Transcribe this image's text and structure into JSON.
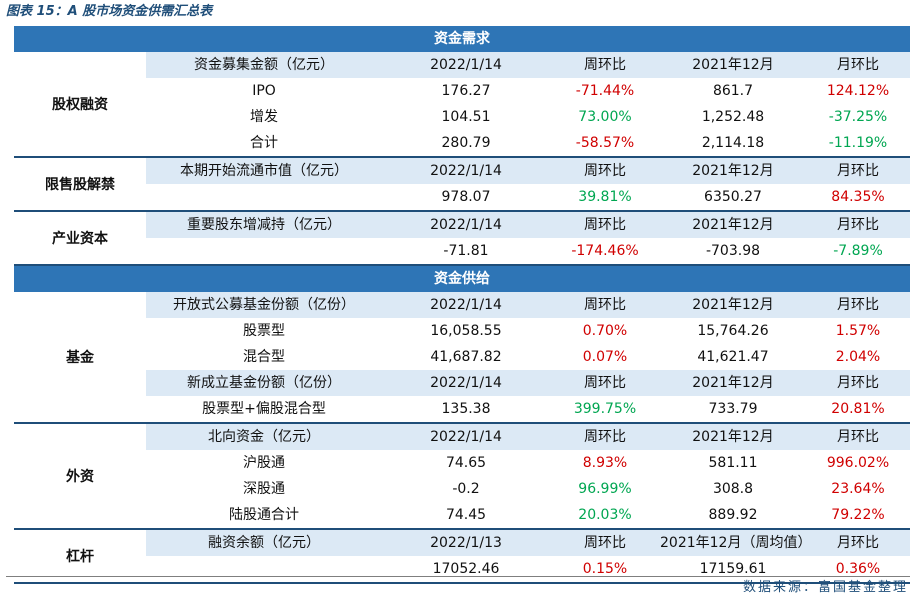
{
  "title": "图表 15：A 股市场资金供需汇总表",
  "source": "数据来源：富国基金整理",
  "bands": {
    "demand": "资金需求",
    "supply": "资金供给"
  },
  "sections": [
    {
      "id": "equity",
      "group": "demand",
      "label": "股权融资",
      "rows": [
        {
          "header": true,
          "cells": [
            "资金募集金额（亿元）",
            "2022/1/14",
            "周环比",
            "2021年12月",
            "月环比"
          ]
        },
        {
          "cells": [
            "IPO",
            "176.27",
            "-71.44%",
            "861.7",
            "124.12%"
          ],
          "colors": [
            "",
            "",
            "red",
            "",
            "red"
          ]
        },
        {
          "cells": [
            "增发",
            "104.51",
            "73.00%",
            "1,252.48",
            "-37.25%"
          ],
          "colors": [
            "",
            "",
            "green",
            "",
            "green"
          ]
        },
        {
          "cells": [
            "合计",
            "280.79",
            "-58.57%",
            "2,114.18",
            "-11.19%"
          ],
          "colors": [
            "",
            "",
            "red",
            "",
            "green"
          ]
        }
      ]
    },
    {
      "id": "unlock",
      "group": "demand",
      "label": "限售股解禁",
      "rows": [
        {
          "header": true,
          "cells": [
            "本期开始流通市值（亿元）",
            "2022/1/14",
            "周环比",
            "2021年12月",
            "月环比"
          ]
        },
        {
          "cells": [
            "",
            "978.07",
            "39.81%",
            "6350.27",
            "84.35%"
          ],
          "colors": [
            "",
            "",
            "green",
            "",
            "red"
          ]
        }
      ]
    },
    {
      "id": "industrial",
      "group": "demand",
      "label": "产业资本",
      "rows": [
        {
          "header": true,
          "cells": [
            "重要股东增减持（亿元）",
            "2022/1/14",
            "周环比",
            "2021年12月",
            "月环比"
          ]
        },
        {
          "cells": [
            "",
            "-71.81",
            "-174.46%",
            "-703.98",
            "-7.89%"
          ],
          "colors": [
            "",
            "",
            "red",
            "",
            "green"
          ]
        }
      ]
    },
    {
      "id": "fund",
      "group": "supply",
      "label": "基金",
      "rows": [
        {
          "header": true,
          "cells": [
            "开放式公募基金份额（亿份）",
            "2022/1/14",
            "周环比",
            "2021年12月",
            "月环比"
          ]
        },
        {
          "cells": [
            "股票型",
            "16,058.55",
            "0.70%",
            "15,764.26",
            "1.57%"
          ],
          "colors": [
            "",
            "",
            "red",
            "",
            "red"
          ]
        },
        {
          "cells": [
            "混合型",
            "41,687.82",
            "0.07%",
            "41,621.47",
            "2.04%"
          ],
          "colors": [
            "",
            "",
            "red",
            "",
            "red"
          ]
        },
        {
          "header": true,
          "cells": [
            "新成立基金份额（亿份）",
            "2022/1/14",
            "周环比",
            "2021年12月",
            "月环比"
          ]
        },
        {
          "cells": [
            "股票型+偏股混合型",
            "135.38",
            "399.75%",
            "733.79",
            "20.81%"
          ],
          "colors": [
            "",
            "",
            "green",
            "",
            "red"
          ]
        }
      ]
    },
    {
      "id": "foreign",
      "group": "supply",
      "label": "外资",
      "rows": [
        {
          "header": true,
          "cells": [
            "北向资金（亿元）",
            "2022/1/14",
            "周环比",
            "2021年12月",
            "月环比"
          ]
        },
        {
          "cells": [
            "沪股通",
            "74.65",
            "8.93%",
            "581.11",
            "996.02%"
          ],
          "colors": [
            "",
            "",
            "red",
            "",
            "red"
          ]
        },
        {
          "cells": [
            "深股通",
            "-0.2",
            "96.99%",
            "308.8",
            "23.64%"
          ],
          "colors": [
            "",
            "",
            "green",
            "",
            "red"
          ]
        },
        {
          "cells": [
            "陆股通合计",
            "74.45",
            "20.03%",
            "889.92",
            "79.22%"
          ],
          "colors": [
            "",
            "",
            "green",
            "",
            "red"
          ]
        }
      ]
    },
    {
      "id": "leverage",
      "group": "supply",
      "label": "杠杆",
      "rows": [
        {
          "header": true,
          "cells": [
            "融资余额（亿元）",
            "2022/1/13",
            "周环比",
            "2021年12月（周均值）",
            "月环比"
          ]
        },
        {
          "cells": [
            "",
            "17052.46",
            "0.15%",
            "17159.61",
            "0.36%"
          ],
          "colors": [
            "",
            "",
            "red",
            "",
            "red"
          ]
        }
      ]
    }
  ],
  "colors": {
    "band": "#2e75b6",
    "header_row": "#dce9f5",
    "rule": "#1f4e79",
    "positive": "#d00000",
    "negative": "#00a651"
  }
}
